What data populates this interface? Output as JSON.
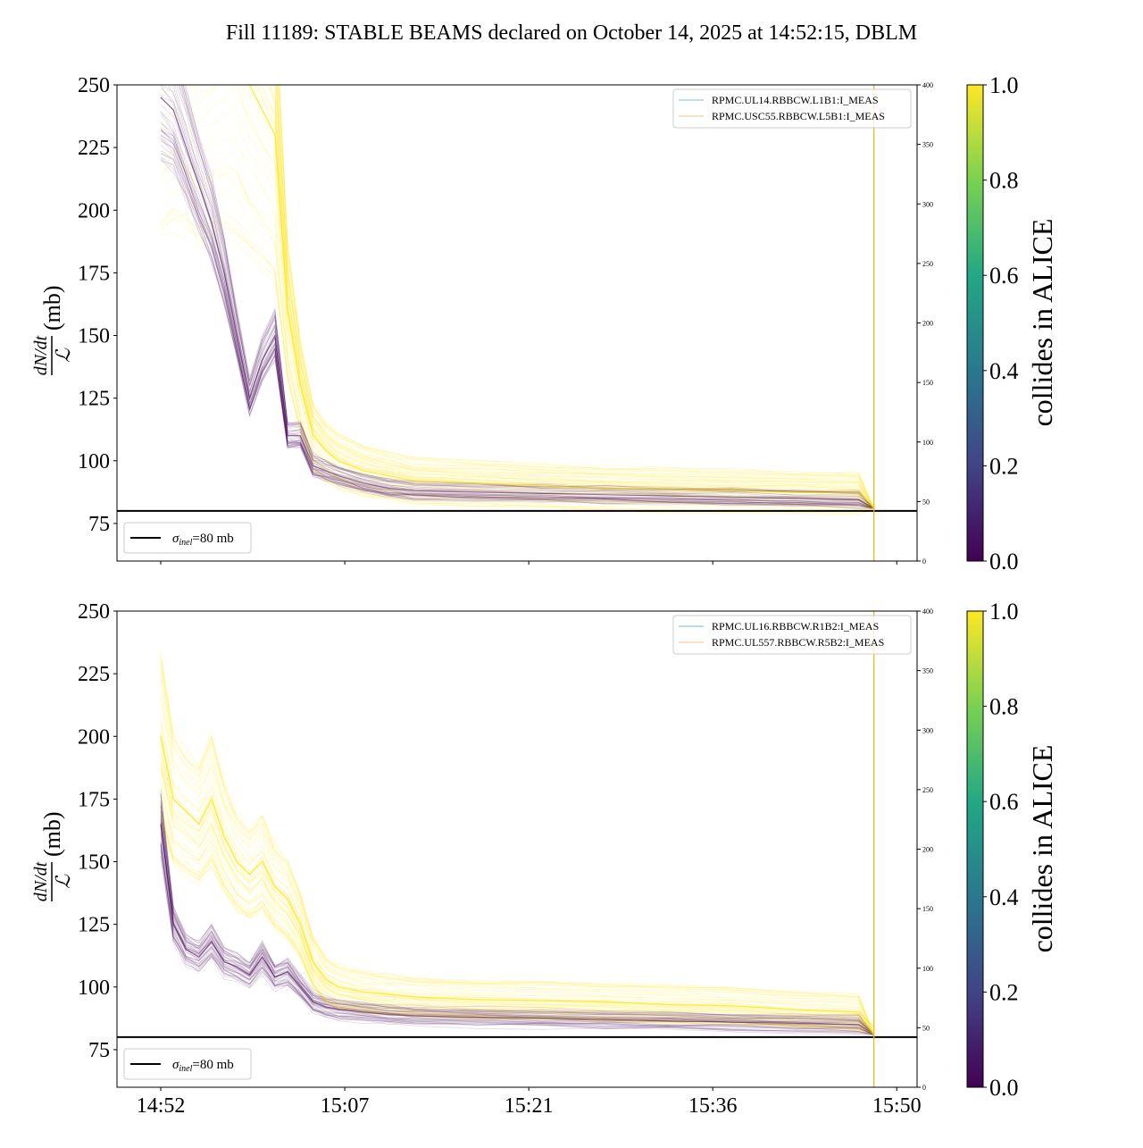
{
  "title": "Fill 11189: STABLE BEAMS declared on October 14, 2025 at 14:52:15, DBLM",
  "chart_data": [
    {
      "type": "line",
      "panel": "top",
      "ylabel_num": "dN/dt",
      "ylabel_den": "ℒ",
      "ylabel_unit": "(mb)",
      "ylim": [
        60,
        250
      ],
      "yticks": [
        75,
        100,
        125,
        150,
        175,
        200,
        225,
        250
      ],
      "y2lim": [
        0,
        400
      ],
      "y2ticks": [
        0,
        50,
        100,
        150,
        200,
        250,
        300,
        350,
        400
      ],
      "x_unit": "minutes since 14:52",
      "xlim": [
        -3.45,
        59.6
      ],
      "xticks": [
        0,
        14.5,
        29,
        43.5,
        58
      ],
      "xticklabels": [
        "14:52",
        "15:07",
        "15:21",
        "15:36",
        "15:50"
      ],
      "vline_x": 56.2,
      "legend": [
        "RPMC.UL14.RBBCW.L1B1:I_MEAS",
        "RPMC.USC55.RBBCW.L5B1:I_MEAS"
      ],
      "legend_colors": [
        "#7fb3dc",
        "#ffbf7f"
      ],
      "hline": {
        "y": 80,
        "label_sym": "σ",
        "label_sub": "inel",
        "label_rest": "=80 mb"
      },
      "x": [
        0,
        1,
        2,
        3,
        4,
        5,
        6,
        7,
        8,
        9,
        10,
        11,
        12,
        13,
        14,
        16,
        18,
        20,
        25,
        30,
        35,
        40,
        45,
        50,
        55,
        56.2
      ],
      "series": [
        {
          "name": "colliding (1.0)",
          "values": [
            270,
            280,
            275,
            260,
            265,
            270,
            265,
            250,
            240,
            230,
            160,
            130,
            110,
            104,
            100,
            96,
            94,
            92,
            91,
            90,
            89,
            88.5,
            88,
            87.5,
            87,
            82
          ],
          "spread": 0.09
        },
        {
          "name": "non-colliding (0.0)",
          "values": [
            245,
            240,
            225,
            210,
            195,
            175,
            150,
            125,
            140,
            150,
            110,
            110,
            98,
            96,
            94,
            91,
            89,
            88,
            87.5,
            87,
            86.5,
            86,
            85.5,
            85,
            84.5,
            81
          ],
          "spread": 0.04
        }
      ]
    },
    {
      "type": "line",
      "panel": "bottom",
      "ylabel_num": "dN/dt",
      "ylabel_den": "ℒ",
      "ylabel_unit": "(mb)",
      "ylim": [
        60,
        250
      ],
      "yticks": [
        75,
        100,
        125,
        150,
        175,
        200,
        225,
        250
      ],
      "y2lim": [
        0,
        400
      ],
      "y2ticks": [
        0,
        50,
        100,
        150,
        200,
        250,
        300,
        350,
        400
      ],
      "x_unit": "minutes since 14:52",
      "xlim": [
        -3.45,
        59.6
      ],
      "xticks": [
        0,
        14.5,
        29,
        43.5,
        58
      ],
      "xticklabels": [
        "14:52",
        "15:07",
        "15:21",
        "15:36",
        "15:50"
      ],
      "vline_x": 56.2,
      "legend": [
        "RPMC.UL16.RBBCW.R1B2:I_MEAS",
        "RPMC.UL557.RBBCW.R5B2:I_MEAS"
      ],
      "legend_colors": [
        "#7fb3dc",
        "#ffbf7f"
      ],
      "hline": {
        "y": 80,
        "label_sym": "σ",
        "label_sub": "inel",
        "label_rest": "=80 mb"
      },
      "x": [
        0,
        1,
        2,
        3,
        4,
        5,
        6,
        7,
        8,
        9,
        10,
        11,
        12,
        13,
        14,
        16,
        18,
        20,
        25,
        30,
        35,
        40,
        45,
        50,
        55,
        56.2
      ],
      "series": [
        {
          "name": "colliding (1.0)",
          "values": [
            200,
            175,
            170,
            165,
            175,
            160,
            150,
            145,
            150,
            140,
            135,
            125,
            110,
            103,
            100,
            98,
            97,
            96,
            95,
            94.5,
            94,
            93,
            92.5,
            91,
            90,
            84
          ],
          "spread": 0.07
        },
        {
          "name": "non-colliding (0.0)",
          "values": [
            165,
            125,
            115,
            112,
            118,
            110,
            108,
            105,
            112,
            104,
            106,
            100,
            94,
            92,
            91,
            90,
            89,
            88.5,
            88,
            87.5,
            87,
            86.5,
            86,
            85.5,
            85,
            81
          ],
          "spread": 0.04
        }
      ]
    }
  ],
  "colorbar": {
    "label": "collides in ALICE",
    "ticks": [
      "0.0",
      "0.2",
      "0.4",
      "0.6",
      "0.8",
      "1.0"
    ],
    "colors": [
      "#440154",
      "#414487",
      "#2a788e",
      "#22a884",
      "#7ad151",
      "#fde725"
    ]
  }
}
